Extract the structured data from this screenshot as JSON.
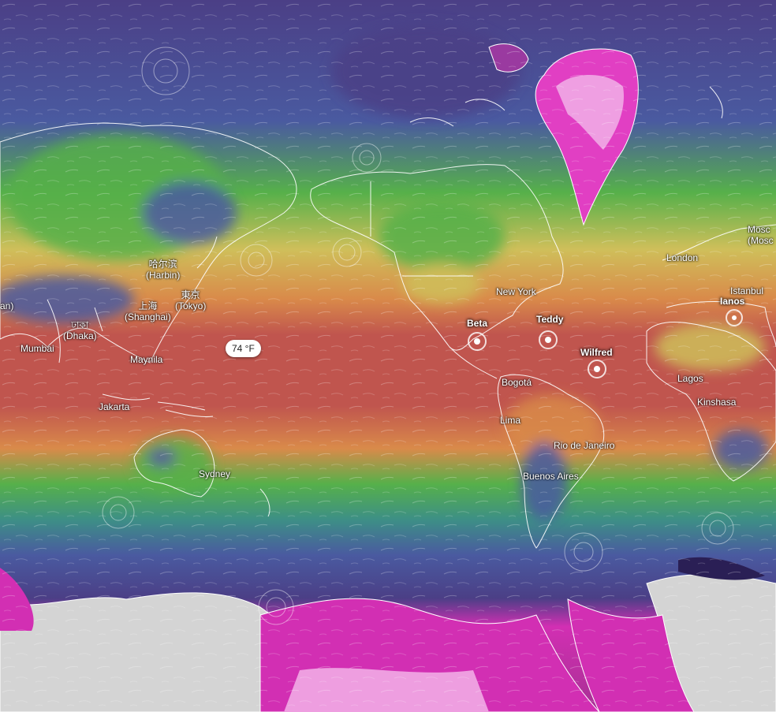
{
  "colors": {
    "hot": "#c0554e",
    "warm": "#d98a4a",
    "mild": "#cfbf5a",
    "temperate": "#56b04a",
    "cool": "#3d8f86",
    "cold": "#4a5aa0",
    "frigid": "#4b3f86",
    "freezing": "#d22fb3",
    "ice": "#d9d9d9",
    "border": "#ffffff"
  },
  "temperature_readout": "74 °F",
  "cities": [
    {
      "name": "哈尔滨",
      "alt": "(Harbin)"
    },
    {
      "name": "東京",
      "alt": "(Tokyo)"
    },
    {
      "name": "上海",
      "alt": "(Shanghai)"
    },
    {
      "name": "ঢাকা",
      "alt": "(Dhaka)"
    },
    {
      "name": "Mumbai",
      "alt": ""
    },
    {
      "name": "Maynila",
      "alt": ""
    },
    {
      "name": "Jakarta",
      "alt": ""
    },
    {
      "name": "Sydney",
      "alt": ""
    },
    {
      "name": "New York",
      "alt": ""
    },
    {
      "name": "Bogotá",
      "alt": ""
    },
    {
      "name": "Lima",
      "alt": ""
    },
    {
      "name": "Rio de Janeiro",
      "alt": ""
    },
    {
      "name": "Buenos Aires",
      "alt": ""
    },
    {
      "name": "London",
      "alt": ""
    },
    {
      "name": "Mosc",
      "alt": "(Mosc"
    },
    {
      "name": "Istanbul",
      "alt": ""
    },
    {
      "name": "Lagos",
      "alt": ""
    },
    {
      "name": "Kinshasa",
      "alt": ""
    },
    {
      "name": "an)",
      "alt": ""
    }
  ],
  "storms": [
    {
      "name": "Beta"
    },
    {
      "name": "Teddy"
    },
    {
      "name": "Wilfred"
    },
    {
      "name": "Ianos"
    }
  ]
}
